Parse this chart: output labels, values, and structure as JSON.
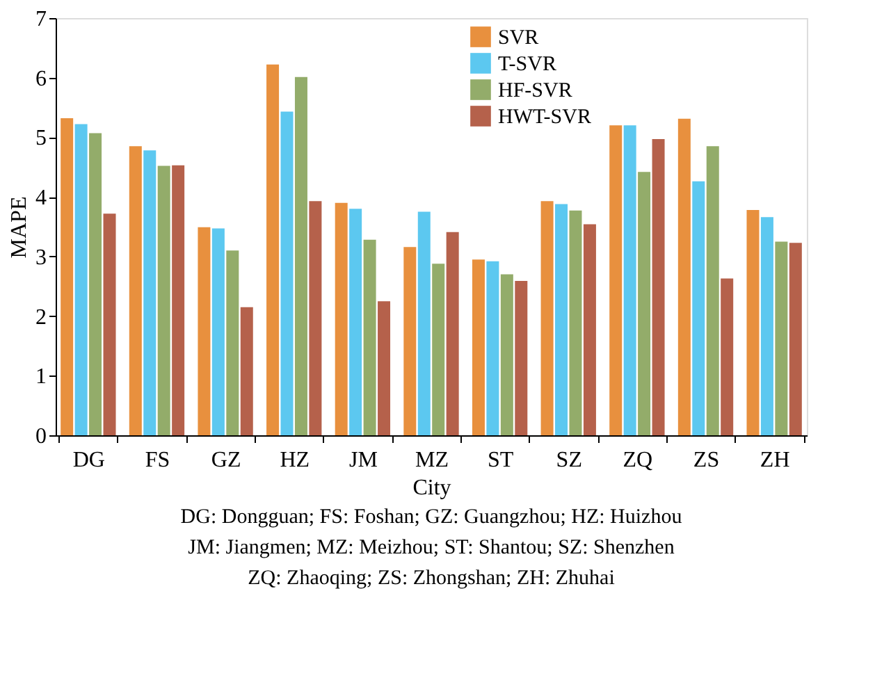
{
  "chart_data": {
    "type": "bar",
    "xlabel": "City",
    "ylabel": "MAPE",
    "categories": [
      "DG",
      "FS",
      "GZ",
      "HZ",
      "JM",
      "MZ",
      "ST",
      "SZ",
      "ZQ",
      "ZS",
      "ZH"
    ],
    "series": [
      {
        "name": "SVR",
        "color": "#e8903e",
        "values": [
          5.32,
          4.85,
          3.49,
          6.22,
          3.9,
          3.16,
          2.95,
          3.93,
          5.2,
          5.31,
          3.78
        ]
      },
      {
        "name": "T-SVR",
        "color": "#5cc8f0",
        "values": [
          5.22,
          4.78,
          3.47,
          5.43,
          3.8,
          3.75,
          2.92,
          3.88,
          5.2,
          4.26,
          3.66
        ]
      },
      {
        "name": "HF-SVR",
        "color": "#93ac6a",
        "values": [
          5.07,
          4.52,
          3.1,
          6.01,
          3.28,
          2.88,
          2.7,
          3.77,
          4.42,
          4.85,
          3.25
        ]
      },
      {
        "name": "HWT-SVR",
        "color": "#b5614b",
        "values": [
          3.72,
          4.53,
          2.15,
          3.93,
          2.25,
          3.41,
          2.59,
          3.54,
          4.97,
          2.63,
          3.23
        ]
      }
    ],
    "ylim": [
      0,
      7
    ],
    "yticks": [
      0,
      1,
      2,
      3,
      4,
      5,
      6,
      7
    ],
    "grid": false,
    "legend": "top",
    "annotations": [
      "DG: Dongguan; FS: Foshan; GZ: Guangzhou; HZ: Huizhou",
      "JM: Jiangmen; MZ: Meizhou; ST: Shantou; SZ: Shenzhen",
      "ZQ: Zhaoqing; ZS: Zhongshan; ZH: Zhuhai"
    ]
  }
}
